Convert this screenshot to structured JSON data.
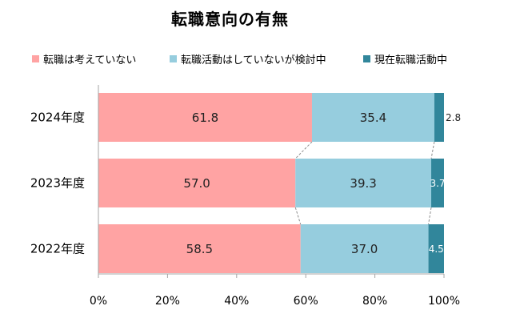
{
  "chart_data": {
    "type": "bar",
    "orientation": "horizontal",
    "stacked": true,
    "title": "転職意向の有無",
    "categories": [
      "2024年度",
      "2023年度",
      "2022年度"
    ],
    "series": [
      {
        "name": "転職は考えていない",
        "color": "#FFA3A3",
        "values": [
          61.8,
          57.0,
          58.5
        ],
        "labels": [
          "61.8",
          "57.0",
          "58.5"
        ]
      },
      {
        "name": "転職活動はしていないが検討中",
        "color": "#96CDDE",
        "values": [
          35.4,
          39.3,
          37.0
        ],
        "labels": [
          "35.4",
          "39.3",
          "37.0"
        ]
      },
      {
        "name": "現在転職活動中",
        "color": "#31869B",
        "values": [
          2.8,
          3.7,
          4.5
        ],
        "labels": [
          "2.8",
          "3.7",
          "4.5"
        ]
      }
    ],
    "xlim": [
      0,
      100
    ],
    "x_ticks": [
      "0%",
      "20%",
      "40%",
      "60%",
      "80%",
      "100%"
    ],
    "legend_position": "top",
    "series_lines": true,
    "grid": false
  }
}
